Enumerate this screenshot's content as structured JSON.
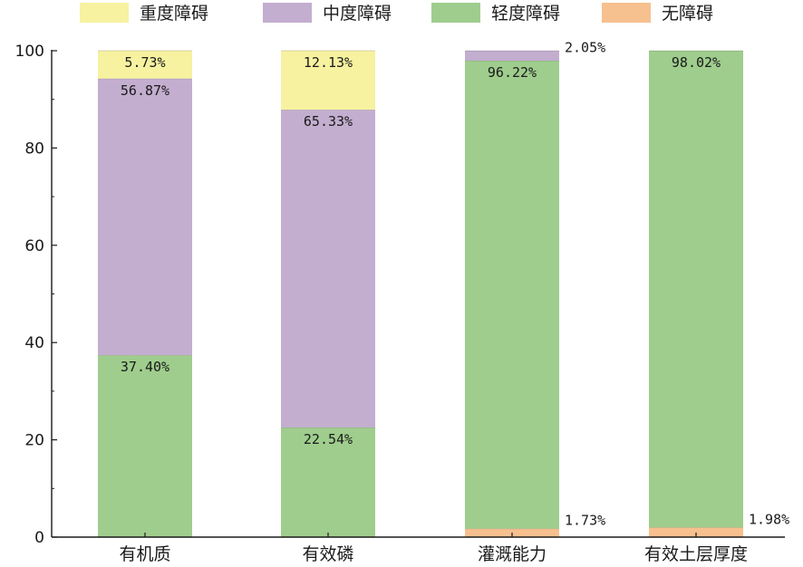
{
  "chart_data": {
    "type": "bar",
    "stacked": true,
    "categories": [
      "有机质",
      "有效磷",
      "灌溉能力",
      "有效土层厚度"
    ],
    "series": [
      {
        "name": "无障碍",
        "color": "#f7c08f",
        "values": [
          0,
          0,
          1.73,
          1.98
        ],
        "labels": [
          "",
          "",
          "1.73%",
          "1.98%"
        ]
      },
      {
        "name": "轻度障碍",
        "color": "#9fcd8d",
        "values": [
          37.4,
          22.54,
          96.22,
          98.02
        ],
        "labels": [
          "37.40%",
          "22.54%",
          "96.22%",
          "98.02%"
        ]
      },
      {
        "name": "中度障碍",
        "color": "#c3aecf",
        "values": [
          56.87,
          65.33,
          2.05,
          0
        ],
        "labels": [
          "56.87%",
          "65.33%",
          "2.05%",
          ""
        ]
      },
      {
        "name": "重度障碍",
        "color": "#f6f2a0",
        "values": [
          5.73,
          12.13,
          0,
          0
        ],
        "labels": [
          "5.73%",
          "12.13%",
          "",
          ""
        ]
      }
    ],
    "legend_order": [
      "重度障碍",
      "中度障碍",
      "轻度障碍",
      "无障碍"
    ],
    "legend_placement": "top",
    "ylim": [
      0,
      100
    ],
    "yticks": [
      0,
      20,
      40,
      60,
      80,
      100
    ],
    "title": "",
    "xlabel": "",
    "ylabel": "",
    "grid": false
  }
}
